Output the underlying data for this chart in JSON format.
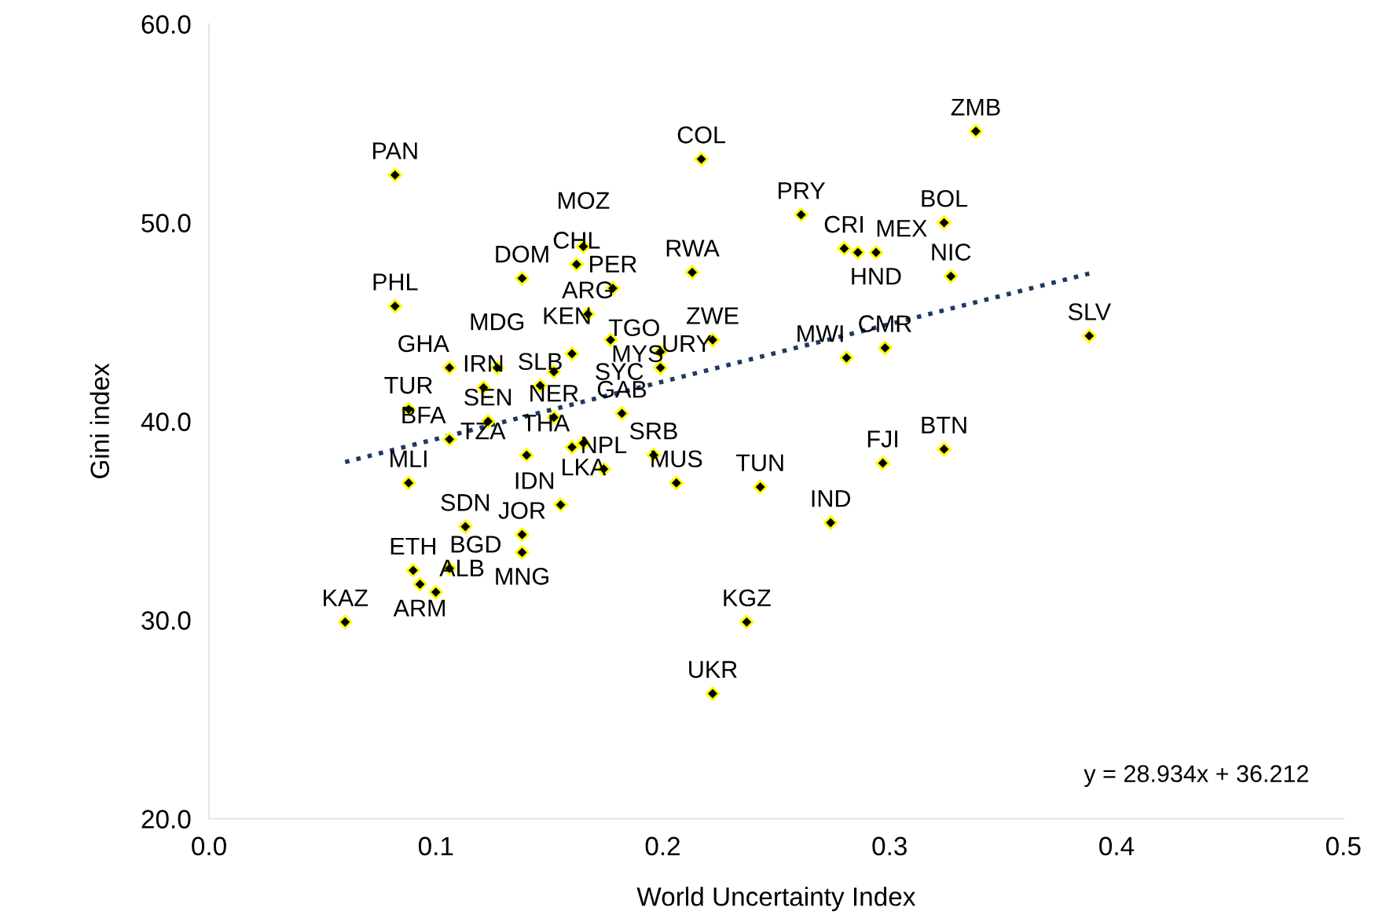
{
  "chart_data": {
    "type": "scatter",
    "xlabel": "World Uncertainty Index",
    "ylabel": "Gini index",
    "xlim": [
      0,
      0.5
    ],
    "ylim": [
      20,
      60
    ],
    "xticks": [
      {
        "value": 0,
        "label": "0.0"
      },
      {
        "value": 0.1,
        "label": "0.1"
      },
      {
        "value": 0.2,
        "label": "0.2"
      },
      {
        "value": 0.3,
        "label": "0.3"
      },
      {
        "value": 0.4,
        "label": "0.4"
      },
      {
        "value": 0.5,
        "label": "0.5"
      }
    ],
    "yticks": [
      {
        "value": 20,
        "label": "20.0"
      },
      {
        "value": 30,
        "label": "30.0"
      },
      {
        "value": 40,
        "label": "40.0"
      },
      {
        "value": 50,
        "label": "50.0"
      },
      {
        "value": 60,
        "label": "60.0"
      }
    ],
    "grid": false,
    "legend": false,
    "marker": "diamond",
    "series": [
      {
        "type": "scatter",
        "color": "#000000",
        "x": [
          0.082,
          0.217,
          0.338,
          0.261,
          0.28,
          0.286,
          0.294,
          0.324,
          0.327,
          0.213,
          0.388,
          0.298,
          0.281,
          0.222,
          0.199,
          0.199,
          0.177,
          0.324,
          0.297,
          0.274,
          0.243,
          0.206,
          0.196,
          0.237,
          0.222,
          0.182,
          0.174,
          0.16,
          0.165,
          0.14,
          0.123,
          0.152,
          0.106,
          0.088,
          0.088,
          0.121,
          0.146,
          0.106,
          0.127,
          0.152,
          0.16,
          0.167,
          0.178,
          0.162,
          0.165,
          0.138,
          0.082,
          0.155,
          0.138,
          0.138,
          0.113,
          0.09,
          0.106,
          0.093,
          0.1,
          0.06
        ],
        "values": [
          52.4,
          53.2,
          54.6,
          50.4,
          48.7,
          48.5,
          48.5,
          50.0,
          47.3,
          47.5,
          44.3,
          43.7,
          43.2,
          44.1,
          43.5,
          42.7,
          44.1,
          38.6,
          37.9,
          34.9,
          36.7,
          36.9,
          38.3,
          29.9,
          26.3,
          40.4,
          37.6,
          38.7,
          38.9,
          38.3,
          40.0,
          40.2,
          39.1,
          40.6,
          36.9,
          41.7,
          41.8,
          42.7,
          42.7,
          42.5,
          43.4,
          45.4,
          46.7,
          47.9,
          48.8,
          47.2,
          45.8,
          35.8,
          34.3,
          33.4,
          34.7,
          32.5,
          32.6,
          31.8,
          31.4,
          29.9
        ]
      },
      {
        "type": "line",
        "color": "#1f3864",
        "line_style": "dotted",
        "marker": "none",
        "x": [
          0.06,
          0.388
        ],
        "values": [
          37.95,
          47.44
        ]
      }
    ],
    "annotations": [
      {
        "text": "PAN",
        "x": 0.082,
        "y": 52.4
      },
      {
        "text": "COL",
        "x": 0.217,
        "y": 53.2
      },
      {
        "text": "ZMB",
        "x": 0.338,
        "y": 54.6
      },
      {
        "text": "PRY",
        "x": 0.261,
        "y": 50.4
      },
      {
        "text": "CRI",
        "x": 0.28,
        "y": 48.7
      },
      {
        "text": "MEX",
        "x": 0.286,
        "y": 48.5
      },
      {
        "text": "HND",
        "x": 0.294,
        "y": 48.5
      },
      {
        "text": "BOL",
        "x": 0.324,
        "y": 50.0
      },
      {
        "text": "NIC",
        "x": 0.327,
        "y": 47.3
      },
      {
        "text": "RWA",
        "x": 0.213,
        "y": 47.5
      },
      {
        "text": "SLV",
        "x": 0.388,
        "y": 44.3
      },
      {
        "text": "CMR",
        "x": 0.298,
        "y": 43.7
      },
      {
        "text": "MWI",
        "x": 0.281,
        "y": 43.2
      },
      {
        "text": "ZWE",
        "x": 0.222,
        "y": 44.1
      },
      {
        "text": "TGO",
        "x": 0.199,
        "y": 43.5
      },
      {
        "text": "URY",
        "x": 0.199,
        "y": 42.7
      },
      {
        "text": "KEN",
        "x": 0.177,
        "y": 44.1
      },
      {
        "text": "BTN",
        "x": 0.324,
        "y": 38.6
      },
      {
        "text": "FJI",
        "x": 0.297,
        "y": 37.9
      },
      {
        "text": "IND",
        "x": 0.274,
        "y": 34.9
      },
      {
        "text": "TUN",
        "x": 0.243,
        "y": 36.7
      },
      {
        "text": "MUS",
        "x": 0.206,
        "y": 36.9
      },
      {
        "text": "SRB",
        "x": 0.196,
        "y": 38.3
      },
      {
        "text": "KGZ",
        "x": 0.237,
        "y": 29.9
      },
      {
        "text": "UKR",
        "x": 0.222,
        "y": 26.3
      },
      {
        "text": "GAB",
        "x": 0.182,
        "y": 40.4
      },
      {
        "text": "NPL",
        "x": 0.174,
        "y": 37.6
      },
      {
        "text": "THA",
        "x": 0.16,
        "y": 38.7
      },
      {
        "text": "LKA",
        "x": 0.165,
        "y": 38.9
      },
      {
        "text": "TZA",
        "x": 0.14,
        "y": 38.3
      },
      {
        "text": "SEN",
        "x": 0.123,
        "y": 40.0
      },
      {
        "text": "NER",
        "x": 0.152,
        "y": 40.2
      },
      {
        "text": "BFA",
        "x": 0.106,
        "y": 39.1
      },
      {
        "text": "TUR",
        "x": 0.088,
        "y": 40.6
      },
      {
        "text": "MLI",
        "x": 0.088,
        "y": 36.9
      },
      {
        "text": "IRN",
        "x": 0.121,
        "y": 41.7
      },
      {
        "text": "SLB",
        "x": 0.146,
        "y": 41.8
      },
      {
        "text": "GHA",
        "x": 0.106,
        "y": 42.7
      },
      {
        "text": "MDG",
        "x": 0.127,
        "y": 42.7
      },
      {
        "text": "SYC",
        "x": 0.152,
        "y": 42.5
      },
      {
        "text": "MYS",
        "x": 0.16,
        "y": 43.4
      },
      {
        "text": "ARG",
        "x": 0.167,
        "y": 45.4
      },
      {
        "text": "PER",
        "x": 0.178,
        "y": 46.7
      },
      {
        "text": "CHL",
        "x": 0.162,
        "y": 47.9
      },
      {
        "text": "MOZ",
        "x": 0.165,
        "y": 48.8
      },
      {
        "text": "DOM",
        "x": 0.138,
        "y": 47.2
      },
      {
        "text": "PHL",
        "x": 0.082,
        "y": 45.8
      },
      {
        "text": "IDN",
        "x": 0.155,
        "y": 35.8
      },
      {
        "text": "JOR",
        "x": 0.138,
        "y": 34.3
      },
      {
        "text": "MNG",
        "x": 0.138,
        "y": 33.4
      },
      {
        "text": "SDN",
        "x": 0.113,
        "y": 34.7
      },
      {
        "text": "ETH",
        "x": 0.09,
        "y": 32.5
      },
      {
        "text": "BGD",
        "x": 0.106,
        "y": 32.6
      },
      {
        "text": "ARM",
        "x": 0.093,
        "y": 31.8
      },
      {
        "text": "ALB",
        "x": 0.1,
        "y": 31.4
      },
      {
        "text": "KAZ",
        "x": 0.06,
        "y": 29.9
      },
      "y = 28.934x + 36.212"
    ]
  }
}
